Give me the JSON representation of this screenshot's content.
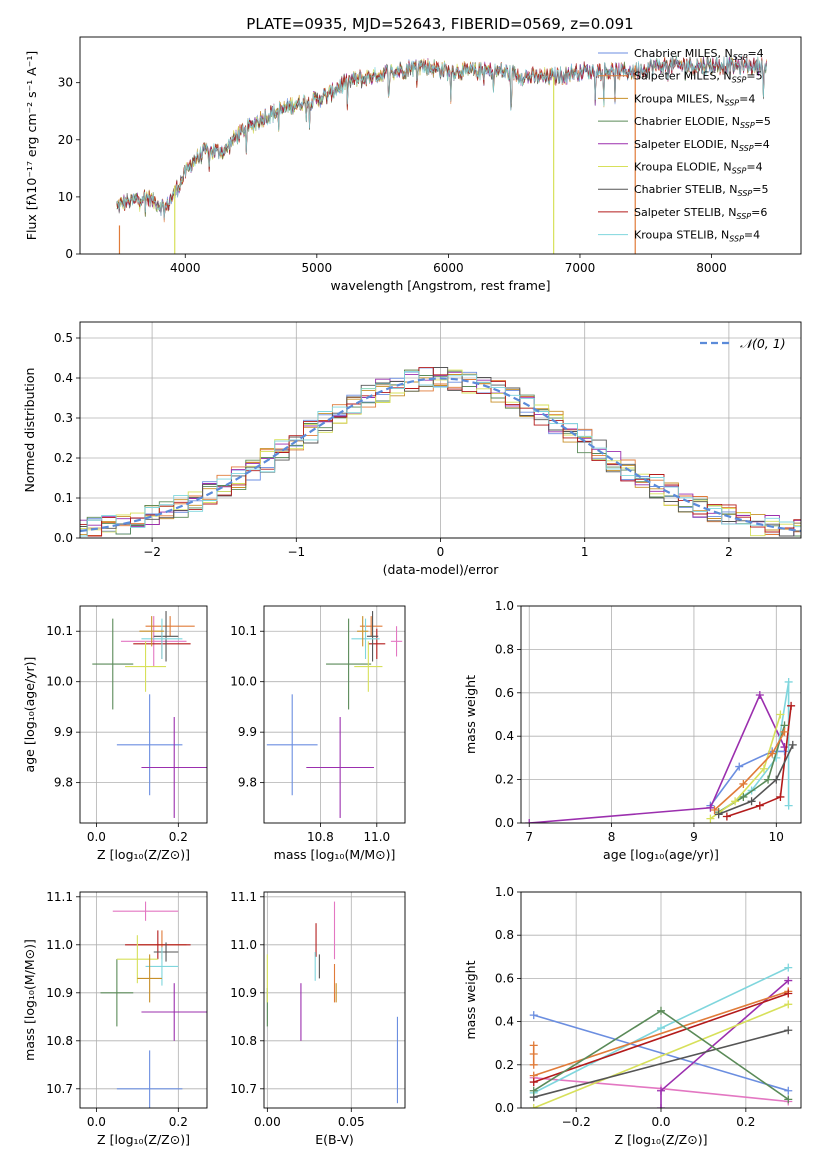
{
  "title": "PLATE=0935, MJD=52643, FIBERID=0569, z=0.091",
  "colors": {
    "Chabrier MILES": "#6b8ee0",
    "Salpeter MILES": "#e07b39",
    "Kroupa MILES": "#c8902a",
    "Chabrier ELODIE": "#5a8a58",
    "Salpeter ELODIE": "#9b2fae",
    "Kroupa ELODIE": "#d7e05a",
    "Chabrier STELIB": "#555555",
    "Salpeter STELIB": "#b31b1b",
    "Kroupa STELIB": "#7fd6dd",
    "Extra": "#e377c2",
    "normal_curve": "#5b8bd9"
  },
  "chart_data": [
    {
      "id": "spectrum",
      "type": "line",
      "title": "PLATE=0935, MJD=52643, FIBERID=0569, z=0.091",
      "xlabel": "wavelength [Angstrom, rest frame]",
      "ylabel": "Flux [fλ10⁻¹⁷ erg cm⁻² s⁻¹ A⁻¹]",
      "xlim": [
        3200,
        8680
      ],
      "ylim": [
        0,
        38
      ],
      "xticks": [
        4000,
        5000,
        6000,
        7000,
        8000
      ],
      "yticks": [
        0,
        10,
        20,
        30
      ],
      "legend_position": "top-right",
      "grid": false,
      "series": [
        {
          "name": "Chabrier MILES, N",
          "sub": "SSP",
          "eq": "=4"
        },
        {
          "name": "Salpeter MILES, N",
          "sub": "SSP",
          "eq": "=5"
        },
        {
          "name": "Kroupa MILES, N",
          "sub": "SSP",
          "eq": "=4"
        },
        {
          "name": "Chabrier ELODIE, N",
          "sub": "SSP",
          "eq": "=5"
        },
        {
          "name": "Salpeter ELODIE, N",
          "sub": "SSP",
          "eq": "=4"
        },
        {
          "name": "Kroupa ELODIE, N",
          "sub": "SSP",
          "eq": "=4"
        },
        {
          "name": "Chabrier STELIB, N",
          "sub": "SSP",
          "eq": "=5"
        },
        {
          "name": "Salpeter STELIB, N",
          "sub": "SSP",
          "eq": "=6"
        },
        {
          "name": "Kroupa STELIB, N",
          "sub": "SSP",
          "eq": "=4"
        }
      ],
      "continuum": {
        "x": [
          3450,
          3550,
          3700,
          3850,
          3950,
          4050,
          4150,
          4300,
          4400,
          4600,
          4800,
          5000,
          5100,
          5200,
          5400,
          5600,
          5800,
          6000,
          6200,
          6400,
          6600,
          6800,
          7000,
          7200,
          7400,
          7600,
          7800,
          8000,
          8200,
          8400
        ],
        "y": [
          8,
          9,
          10,
          8,
          12,
          16,
          18,
          18,
          21,
          24,
          26,
          27,
          28,
          30,
          31,
          32,
          33,
          32,
          32,
          32,
          31,
          31,
          32,
          32,
          32,
          33,
          33,
          33,
          33,
          33
        ]
      }
    },
    {
      "id": "residuals",
      "type": "histogram",
      "xlabel": "(data-model)/error",
      "ylabel": "Normed distribution",
      "xlim": [
        -2.5,
        2.5
      ],
      "ylim": [
        0,
        0.54
      ],
      "xticks": [
        -2,
        -1,
        0,
        1,
        2
      ],
      "yticks": [
        0.0,
        0.1,
        0.2,
        0.3,
        0.4,
        0.5
      ],
      "grid": true,
      "legend_position": "top-right",
      "curve_label": "𝒩(0, 1)",
      "bin_width": 0.1
    },
    {
      "id": "age_vs_Z",
      "type": "scatter",
      "xlabel": "Z [log₁₀(Z/Z⊙)]",
      "ylabel": "age  [log₁₀(age/yr)]",
      "xlim": [
        -0.04,
        0.27
      ],
      "ylim": [
        9.72,
        10.15
      ],
      "xticks": [
        0.0,
        0.2
      ],
      "yticks": [
        9.8,
        9.9,
        10.0,
        10.1
      ],
      "grid": true,
      "points": [
        {
          "color": "Chabrier MILES",
          "x": 0.13,
          "xerr": 0.08,
          "y": 9.875,
          "yerr": 0.1
        },
        {
          "color": "Salpeter ELODIE",
          "x": 0.19,
          "xerr": 0.08,
          "y": 9.83,
          "yerr": 0.1
        },
        {
          "color": "Extra",
          "x": 0.14,
          "xerr": 0.08,
          "y": 10.08,
          "yerr": 0.05
        },
        {
          "color": "Salpeter MILES",
          "x": 0.18,
          "xerr": 0.06,
          "y": 10.11,
          "yerr": 0.02
        },
        {
          "color": "Salpeter STELIB",
          "x": 0.16,
          "xerr": 0.07,
          "y": 10.075,
          "yerr": 0.03
        },
        {
          "color": "Chabrier ELODIE",
          "x": 0.04,
          "xerr": 0.05,
          "y": 10.035,
          "yerr": 0.09
        },
        {
          "color": "Kroupa ELODIE",
          "x": 0.12,
          "xerr": 0.05,
          "y": 10.03,
          "yerr": 0.05
        },
        {
          "color": "Chabrier STELIB",
          "x": 0.17,
          "xerr": 0.03,
          "y": 10.09,
          "yerr": 0.05
        },
        {
          "color": "Kroupa STELIB",
          "x": 0.16,
          "xerr": 0.05,
          "y": 10.085,
          "yerr": 0.04
        },
        {
          "color": "Kroupa MILES",
          "x": 0.135,
          "xerr": 0.03,
          "y": 10.1,
          "yerr": 0.03
        }
      ]
    },
    {
      "id": "age_vs_mass",
      "type": "scatter",
      "xlabel": "mass [log₁₀(M/M⊙)]",
      "xlim": [
        10.6,
        11.1
      ],
      "ylim": [
        9.72,
        10.15
      ],
      "xticks": [
        10.8,
        11.0
      ],
      "yticks": [
        9.8,
        9.9,
        10.0,
        10.1
      ],
      "grid": true,
      "points": [
        {
          "color": "Chabrier MILES",
          "x": 10.7,
          "xerr": 0.09,
          "y": 9.875,
          "yerr": 0.1
        },
        {
          "color": "Salpeter ELODIE",
          "x": 10.87,
          "xerr": 0.12,
          "y": 9.83,
          "yerr": 0.1
        },
        {
          "color": "Extra",
          "x": 11.07,
          "xerr": 0.02,
          "y": 10.08,
          "yerr": 0.03
        },
        {
          "color": "Salpeter MILES",
          "x": 10.98,
          "xerr": 0.04,
          "y": 10.11,
          "yerr": 0.02
        },
        {
          "color": "Salpeter STELIB",
          "x": 11.0,
          "xerr": 0.03,
          "y": 10.075,
          "yerr": 0.03
        },
        {
          "color": "Chabrier ELODIE",
          "x": 10.9,
          "xerr": 0.08,
          "y": 10.035,
          "yerr": 0.09
        },
        {
          "color": "Kroupa ELODIE",
          "x": 10.97,
          "xerr": 0.05,
          "y": 10.03,
          "yerr": 0.05
        },
        {
          "color": "Chabrier STELIB",
          "x": 10.985,
          "xerr": 0.02,
          "y": 10.09,
          "yerr": 0.05
        },
        {
          "color": "Kroupa STELIB",
          "x": 10.96,
          "xerr": 0.05,
          "y": 10.085,
          "yerr": 0.04
        },
        {
          "color": "Kroupa MILES",
          "x": 10.95,
          "xerr": 0.02,
          "y": 10.1,
          "yerr": 0.03
        }
      ]
    },
    {
      "id": "weight_vs_age",
      "type": "line",
      "xlabel": "age  [log₁₀(age/yr)]",
      "ylabel": "mass weight",
      "xlim": [
        6.9,
        10.3
      ],
      "ylim": [
        0,
        1.0
      ],
      "xticks": [
        7,
        8,
        9,
        10
      ],
      "yticks": [
        0.0,
        0.2,
        0.4,
        0.6,
        0.8,
        1.0
      ],
      "grid": true,
      "series": [
        {
          "color": "Chabrier MILES",
          "x": [
            9.2,
            9.55,
            9.95,
            10.1
          ],
          "y": [
            0.08,
            0.26,
            0.33,
            0.33
          ]
        },
        {
          "color": "Salpeter ELODIE",
          "x": [
            7.0,
            9.2,
            9.8,
            10.1
          ],
          "y": [
            0.0,
            0.07,
            0.59,
            0.35
          ]
        },
        {
          "color": "Kroupa STELIB",
          "x": [
            9.3,
            9.7,
            10.0,
            10.15,
            10.15
          ],
          "y": [
            0.05,
            0.15,
            0.3,
            0.65,
            0.08
          ]
        },
        {
          "color": "Salpeter STELIB",
          "x": [
            9.4,
            9.8,
            10.05,
            10.18
          ],
          "y": [
            0.03,
            0.08,
            0.12,
            0.54
          ]
        },
        {
          "color": "Chabrier ELODIE",
          "x": [
            9.3,
            9.6,
            9.9,
            10.1
          ],
          "y": [
            0.05,
            0.12,
            0.2,
            0.45
          ]
        },
        {
          "color": "Kroupa ELODIE",
          "x": [
            9.2,
            9.5,
            9.85,
            10.05
          ],
          "y": [
            0.02,
            0.1,
            0.25,
            0.5
          ]
        },
        {
          "color": "Chabrier STELIB",
          "x": [
            9.3,
            9.7,
            10.0,
            10.2
          ],
          "y": [
            0.04,
            0.1,
            0.2,
            0.36
          ]
        },
        {
          "color": "Salpeter MILES",
          "x": [
            9.25,
            9.6,
            9.95,
            10.1
          ],
          "y": [
            0.06,
            0.18,
            0.32,
            0.42
          ]
        }
      ]
    },
    {
      "id": "mass_vs_Z",
      "type": "scatter",
      "xlabel": "Z [log₁₀(Z/Z⊙)]",
      "ylabel": "mass [log₁₀(M/M⊙)]",
      "xlim": [
        -0.04,
        0.27
      ],
      "ylim": [
        10.66,
        11.11
      ],
      "xticks": [
        0.0,
        0.2
      ],
      "yticks": [
        10.7,
        10.8,
        10.9,
        11.0,
        11.1
      ],
      "grid": true,
      "points": [
        {
          "color": "Chabrier MILES",
          "x": 0.13,
          "xerr": 0.08,
          "y": 10.7,
          "yerr": 0.08
        },
        {
          "color": "Salpeter ELODIE",
          "x": 0.19,
          "xerr": 0.08,
          "y": 10.86,
          "yerr": 0.06
        },
        {
          "color": "Extra",
          "x": 0.12,
          "xerr": 0.08,
          "y": 11.07,
          "yerr": 0.02
        },
        {
          "color": "Salpeter MILES",
          "x": 0.16,
          "xerr": 0.06,
          "y": 11.0,
          "yerr": 0.03
        },
        {
          "color": "Salpeter STELIB",
          "x": 0.15,
          "xerr": 0.08,
          "y": 11.0,
          "yerr": 0.03
        },
        {
          "color": "Chabrier ELODIE",
          "x": 0.05,
          "xerr": 0.04,
          "y": 10.9,
          "yerr": 0.07
        },
        {
          "color": "Kroupa ELODIE",
          "x": 0.1,
          "xerr": 0.05,
          "y": 10.97,
          "yerr": 0.05
        },
        {
          "color": "Chabrier STELIB",
          "x": 0.17,
          "xerr": 0.03,
          "y": 10.985,
          "yerr": 0.02
        },
        {
          "color": "Kroupa STELIB",
          "x": 0.16,
          "xerr": 0.04,
          "y": 10.955,
          "yerr": 0.04
        },
        {
          "color": "Kroupa MILES",
          "x": 0.13,
          "xerr": 0.03,
          "y": 10.93,
          "yerr": 0.05
        }
      ]
    },
    {
      "id": "mass_vs_ebv",
      "type": "scatter",
      "xlabel": "E(B-V)",
      "xlim": [
        -0.002,
        0.082
      ],
      "ylim": [
        10.66,
        11.11
      ],
      "xticks": [
        0.0,
        0.05
      ],
      "yticks": [
        10.7,
        10.8,
        10.9,
        11.0,
        11.1
      ],
      "grid": true,
      "points": [
        {
          "color": "Chabrier MILES",
          "x": 0.0775,
          "y": 10.76,
          "yerr": 0.09
        },
        {
          "color": "Salpeter ELODIE",
          "x": 0.02,
          "y": 10.86,
          "yerr": 0.06
        },
        {
          "color": "Extra",
          "x": 0.04,
          "y": 11.03,
          "yerr": 0.06
        },
        {
          "color": "Salpeter MILES",
          "x": 0.04,
          "y": 10.92,
          "yerr": 0.04
        },
        {
          "color": "Salpeter STELIB",
          "x": 0.029,
          "y": 11.01,
          "yerr": 0.035
        },
        {
          "color": "Chabrier ELODIE",
          "x": 0.0,
          "y": 10.87,
          "yerr": 0.04
        },
        {
          "color": "Kroupa ELODIE",
          "x": 0.0,
          "y": 10.93,
          "yerr": 0.05
        },
        {
          "color": "Chabrier STELIB",
          "x": 0.031,
          "y": 10.955,
          "yerr": 0.025
        },
        {
          "color": "Kroupa STELIB",
          "x": 0.0285,
          "y": 10.955,
          "yerr": 0.03
        },
        {
          "color": "Kroupa MILES",
          "x": 0.041,
          "y": 10.9,
          "yerr": 0.02
        }
      ]
    },
    {
      "id": "weight_vs_Z",
      "type": "line",
      "xlabel": "Z [log₁₀(Z/Z⊙)]",
      "ylabel": "mass weight",
      "xlim": [
        -0.33,
        0.33
      ],
      "ylim": [
        0,
        1.0
      ],
      "xticks": [
        -0.2,
        0.0,
        0.2
      ],
      "yticks": [
        0.0,
        0.2,
        0.4,
        0.6,
        0.8,
        1.0
      ],
      "grid": true,
      "series": [
        {
          "color": "Chabrier MILES",
          "x": [
            -0.3,
            0.3
          ],
          "y": [
            0.43,
            0.08
          ]
        },
        {
          "color": "Extra",
          "x": [
            -0.3,
            0.0,
            0.3
          ],
          "y": [
            0.14,
            0.09,
            0.03
          ]
        },
        {
          "color": "Salpeter ELODIE",
          "x": [
            0.0,
            0.0,
            0.3
          ],
          "y": [
            0.0,
            0.08,
            0.59
          ]
        },
        {
          "color": "Kroupa STELIB",
          "x": [
            -0.3,
            0.0,
            0.3
          ],
          "y": [
            0.07,
            0.37,
            0.65
          ]
        },
        {
          "color": "Salpeter MILES",
          "x": [
            -0.3,
            0.3
          ],
          "y": [
            0.15,
            0.54
          ]
        },
        {
          "color": "Salpeter STELIB",
          "x": [
            -0.3,
            0.3
          ],
          "y": [
            0.12,
            0.53
          ]
        },
        {
          "color": "Kroupa ELODIE",
          "x": [
            -0.3,
            0.3
          ],
          "y": [
            0.0,
            0.48
          ]
        },
        {
          "color": "Chabrier STELIB",
          "x": [
            -0.3,
            0.3
          ],
          "y": [
            0.05,
            0.36
          ]
        },
        {
          "color": "Chabrier ELODIE",
          "x": [
            -0.3,
            0.0,
            0.3
          ],
          "y": [
            0.08,
            0.45,
            0.04
          ]
        },
        {
          "color": "Salpeter MILES",
          "x": [
            -0.3,
            -0.3,
            -0.3
          ],
          "y": [
            0.2,
            0.25,
            0.29
          ]
        }
      ]
    }
  ]
}
